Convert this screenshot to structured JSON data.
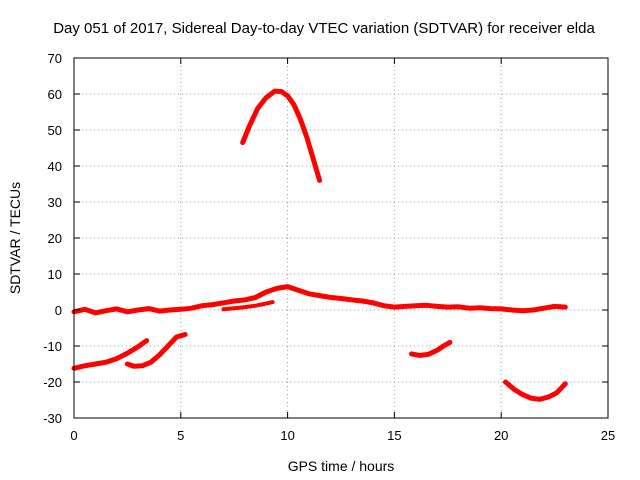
{
  "chart_data": {
    "type": "line",
    "title": "Day 051 of 2017, Sidereal Day-to-day VTEC variation (SDTVAR) for receiver elda",
    "xlabel": "GPS time / hours",
    "ylabel": "SDTVAR / TECUs",
    "xlim": [
      0,
      25
    ],
    "ylim": [
      -30,
      70
    ],
    "xticks": [
      0,
      5,
      10,
      15,
      20,
      25
    ],
    "yticks": [
      -30,
      -20,
      -10,
      0,
      10,
      20,
      30,
      40,
      50,
      60,
      70
    ],
    "grid": true,
    "color": "#ff0000",
    "series": [
      {
        "name": "arc-main-zero",
        "thick": 5,
        "points": [
          [
            0,
            -0.5
          ],
          [
            0.5,
            0.2
          ],
          [
            1,
            -0.8
          ],
          [
            1.5,
            -0.2
          ],
          [
            2,
            0.3
          ],
          [
            2.5,
            -0.5
          ],
          [
            3,
            0
          ],
          [
            3.5,
            0.4
          ],
          [
            4,
            -0.3
          ],
          [
            4.5,
            0
          ],
          [
            5,
            0.2
          ],
          [
            5.5,
            0.5
          ],
          [
            6,
            1.2
          ],
          [
            6.5,
            1.5
          ],
          [
            7,
            2
          ],
          [
            7.5,
            2.5
          ],
          [
            8,
            2.8
          ],
          [
            8.5,
            3.5
          ],
          [
            9,
            5
          ],
          [
            9.5,
            6
          ],
          [
            10,
            6.5
          ],
          [
            10.5,
            5.5
          ],
          [
            11,
            4.5
          ],
          [
            11.5,
            4
          ],
          [
            12,
            3.5
          ],
          [
            12.5,
            3.2
          ],
          [
            13,
            2.8
          ],
          [
            13.5,
            2.5
          ],
          [
            14,
            2
          ],
          [
            14.5,
            1.2
          ],
          [
            15,
            0.8
          ],
          [
            15.5,
            1
          ],
          [
            16,
            1.2
          ],
          [
            16.5,
            1.3
          ],
          [
            17,
            1
          ],
          [
            17.5,
            0.8
          ],
          [
            18,
            0.9
          ],
          [
            18.5,
            0.5
          ],
          [
            19,
            0.6
          ],
          [
            19.5,
            0.4
          ],
          [
            20,
            0.3
          ],
          [
            20.5,
            0
          ],
          [
            21,
            -0.2
          ],
          [
            21.5,
            0
          ],
          [
            22,
            0.5
          ],
          [
            22.5,
            1
          ],
          [
            23,
            0.8
          ]
        ]
      },
      {
        "name": "arc-lower-band",
        "thick": 4,
        "points": [
          [
            7,
            0.2
          ],
          [
            7.5,
            0.5
          ],
          [
            8,
            0.8
          ],
          [
            8.5,
            1.2
          ],
          [
            9,
            1.8
          ],
          [
            9.3,
            2.2
          ]
        ]
      },
      {
        "name": "arc-peak",
        "thick": 5,
        "points": [
          [
            7.9,
            46.5
          ],
          [
            8.2,
            51
          ],
          [
            8.6,
            56
          ],
          [
            9,
            59
          ],
          [
            9.4,
            60.8
          ],
          [
            9.7,
            60.7
          ],
          [
            10,
            59.5
          ],
          [
            10.3,
            57
          ],
          [
            10.6,
            53
          ],
          [
            10.9,
            48
          ],
          [
            11.2,
            42
          ],
          [
            11.5,
            36
          ]
        ]
      },
      {
        "name": "arc-neg-a",
        "thick": 5,
        "points": [
          [
            0,
            -16.2
          ],
          [
            0.5,
            -15.5
          ],
          [
            1,
            -15
          ],
          [
            1.5,
            -14.5
          ],
          [
            2,
            -13.5
          ],
          [
            2.5,
            -12
          ],
          [
            3,
            -10.2
          ],
          [
            3.4,
            -8.5
          ]
        ]
      },
      {
        "name": "arc-neg-b",
        "thick": 5,
        "points": [
          [
            2.5,
            -15
          ],
          [
            2.8,
            -15.6
          ],
          [
            3.2,
            -15.5
          ],
          [
            3.6,
            -14.5
          ],
          [
            4,
            -12.5
          ],
          [
            4.4,
            -10
          ],
          [
            4.8,
            -7.5
          ],
          [
            5.2,
            -6.8
          ]
        ]
      },
      {
        "name": "arc-neg-c",
        "thick": 5,
        "points": [
          [
            15.8,
            -12.2
          ],
          [
            16.2,
            -12.6
          ],
          [
            16.6,
            -12.3
          ],
          [
            17,
            -11.2
          ],
          [
            17.3,
            -10
          ],
          [
            17.6,
            -9
          ]
        ]
      },
      {
        "name": "arc-neg-d",
        "thick": 5,
        "points": [
          [
            20.2,
            -20
          ],
          [
            20.6,
            -22
          ],
          [
            21,
            -23.5
          ],
          [
            21.4,
            -24.5
          ],
          [
            21.8,
            -24.8
          ],
          [
            22.2,
            -24.2
          ],
          [
            22.6,
            -23
          ],
          [
            23,
            -20.5
          ]
        ]
      }
    ]
  }
}
